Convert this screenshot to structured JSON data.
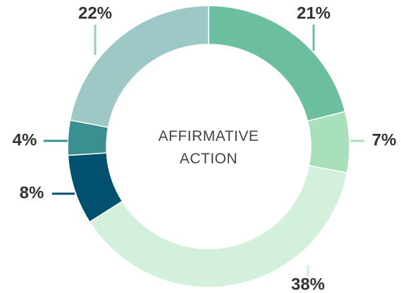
{
  "chart_data": {
    "type": "donut",
    "title": "AFFIRMATIVE ACTION",
    "values": [
      21,
      7,
      38,
      8,
      4,
      22
    ],
    "value_labels": [
      "21%",
      "7%",
      "38%",
      "8%",
      "4%",
      "22%"
    ],
    "colors": [
      "#6bbf9e",
      "#a9e0bc",
      "#d3f0dc",
      "#00506e",
      "#3a9090",
      "#9ec8c6"
    ]
  }
}
